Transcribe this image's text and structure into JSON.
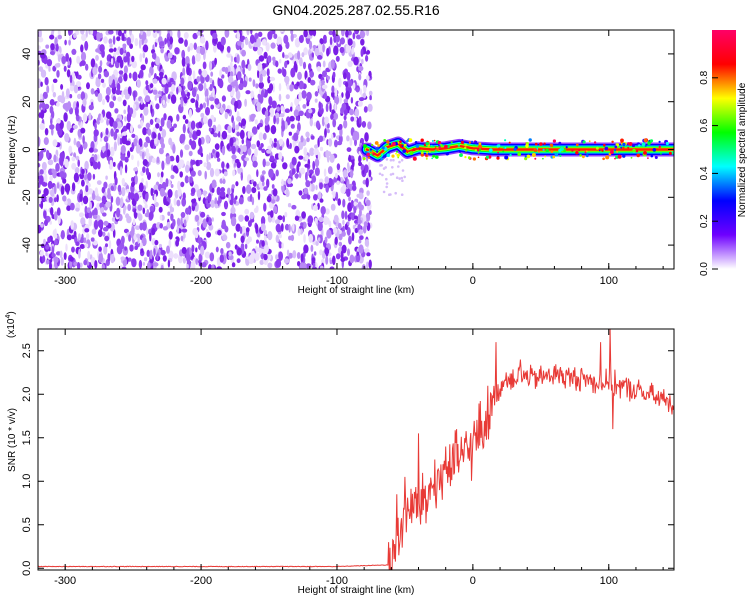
{
  "title": "GN04.2025.287.02.55.R16",
  "colors": {
    "spectrogram_noise": "#7a1ee6",
    "signal_core": "#e3312a",
    "snr_line": "#e83a36",
    "axis": "#000000"
  },
  "chart_data": [
    {
      "type": "heatmap",
      "xlabel": "Height of straight line (km)",
      "ylabel": "Frequency (Hz)",
      "xlim": [
        -320,
        148
      ],
      "ylim": [
        -50,
        50
      ],
      "xticks": [
        -300,
        -200,
        -100,
        0,
        100
      ],
      "yticks": [
        -40,
        -20,
        0,
        20,
        40
      ],
      "grid": false,
      "noise_region_x": [
        -320,
        -75
      ],
      "signal_region_x": [
        -80,
        148
      ],
      "signal_frequency_center": 0,
      "signal_ridge": [
        {
          "x": -78,
          "y": 0.0
        },
        {
          "x": -70,
          "y": -2.5
        },
        {
          "x": -63,
          "y": 1.0
        },
        {
          "x": -55,
          "y": 2.5
        },
        {
          "x": -48,
          "y": -1.0
        },
        {
          "x": -40,
          "y": 0.5
        },
        {
          "x": -30,
          "y": 0.0
        },
        {
          "x": -20,
          "y": 0.5
        },
        {
          "x": -10,
          "y": 1.5
        },
        {
          "x": 0,
          "y": 0.5
        },
        {
          "x": 15,
          "y": 0.0
        },
        {
          "x": 40,
          "y": 0.0
        },
        {
          "x": 80,
          "y": 0.0
        },
        {
          "x": 120,
          "y": 0.0
        },
        {
          "x": 148,
          "y": 0.0
        }
      ],
      "colorbar": {
        "label": "Normalized spectral amplitude",
        "ticks": [
          "0.0",
          "0.2",
          "0.4",
          "0.6",
          "0.8"
        ],
        "range": [
          0,
          1
        ],
        "stops": [
          "#ffffff",
          "#6e00ff",
          "#0000ff",
          "#00ffff",
          "#00ff00",
          "#ffff00",
          "#ff0000",
          "#ff0066"
        ]
      }
    },
    {
      "type": "line",
      "xlabel": "Height of straight line (km)",
      "ylabel": "SNR (10 * v/v)",
      "yscale_note": "(x10",
      "yscale_exponent": "4",
      "xlim": [
        -320,
        148
      ],
      "ylim": [
        -0.02,
        2.75
      ],
      "xticks": [
        -300,
        -200,
        -100,
        0,
        100
      ],
      "yticks": [
        "0.0",
        "0.5",
        "1.0",
        "1.5",
        "2.0",
        "2.5"
      ],
      "grid": false,
      "series": [
        {
          "x": [
            -320,
            -200,
            -100,
            -60,
            -55,
            -50,
            -45,
            -40,
            -35,
            -30,
            -25,
            -20,
            -15,
            -10,
            -5,
            0,
            5,
            10,
            15,
            20,
            25,
            30,
            35,
            40,
            50,
            60,
            70,
            80,
            90,
            100,
            110,
            120,
            130,
            140,
            148
          ],
          "values": [
            0.02,
            0.02,
            0.02,
            0.04,
            0.45,
            0.6,
            0.75,
            0.7,
            0.8,
            0.95,
            1.0,
            1.2,
            1.15,
            1.3,
            1.35,
            1.45,
            1.6,
            1.75,
            1.95,
            2.1,
            2.2,
            2.2,
            2.25,
            2.2,
            2.2,
            2.25,
            2.2,
            2.2,
            2.15,
            2.15,
            2.1,
            2.05,
            2.0,
            1.95,
            1.9
          ],
          "spikes": [
            {
              "x": -56,
              "y": 0.85
            },
            {
              "x": -50,
              "y": 1.05
            },
            {
              "x": -40,
              "y": 1.55
            },
            {
              "x": -35,
              "y": 0.95
            },
            {
              "x": -28,
              "y": 1.25
            },
            {
              "x": -20,
              "y": 1.4
            },
            {
              "x": -12,
              "y": 1.6
            },
            {
              "x": 17,
              "y": 2.6
            },
            {
              "x": 35,
              "y": 2.4
            },
            {
              "x": 94,
              "y": 2.6
            },
            {
              "x": 101,
              "y": 2.75
            },
            {
              "x": 103,
              "y": 1.6
            }
          ]
        }
      ]
    }
  ]
}
